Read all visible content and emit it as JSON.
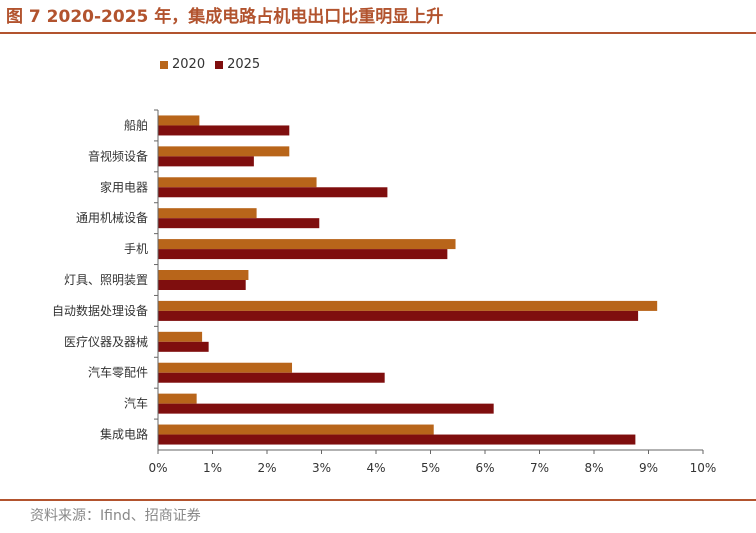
{
  "header": {
    "title": "图 7 2020-2025 年，集成电路占机电出口比重明显上升"
  },
  "footer": {
    "source": "资料来源：Ifind、招商证券"
  },
  "colors": {
    "accent": "#B2532E",
    "series_2020": "#B8651A",
    "series_2025": "#7F0E0E"
  },
  "chart_data": {
    "type": "bar",
    "orientation": "horizontal",
    "title": "",
    "xlabel": "",
    "ylabel": "",
    "categories": [
      "船舶",
      "音视频设备",
      "家用电器",
      "通用机械设备",
      "手机",
      "灯具、照明装置",
      "自动数据处理设备",
      "医疗仪器及器械",
      "汽车零配件",
      "汽车",
      "集成电路"
    ],
    "series": [
      {
        "name": "2020",
        "values": [
          0.75,
          2.4,
          2.9,
          1.8,
          5.45,
          1.65,
          9.15,
          0.8,
          2.45,
          0.7,
          5.05
        ]
      },
      {
        "name": "2025",
        "values": [
          2.4,
          1.75,
          4.2,
          2.95,
          5.3,
          1.6,
          8.8,
          0.92,
          4.15,
          6.15,
          8.75
        ]
      }
    ],
    "xlim": [
      0,
      10
    ],
    "xticks": [
      "0%",
      "1%",
      "2%",
      "3%",
      "4%",
      "5%",
      "6%",
      "7%",
      "8%",
      "9%",
      "10%"
    ],
    "legend": "top-left",
    "grid": false
  }
}
